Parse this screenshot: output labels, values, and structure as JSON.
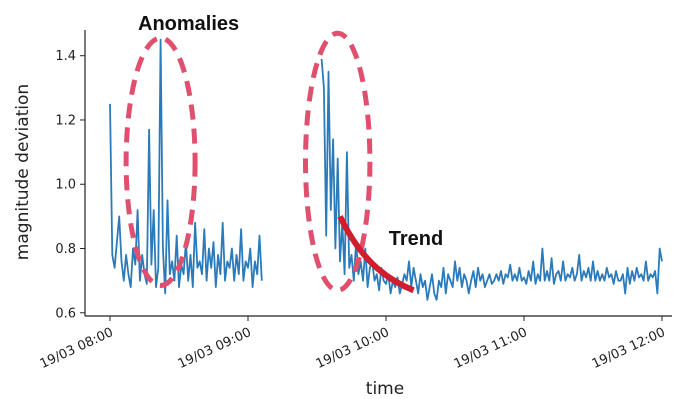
{
  "chart_data": {
    "type": "line",
    "xlabel": "time",
    "ylabel": "magnitude deviation",
    "title": "",
    "ylim": [
      0.59,
      1.48
    ],
    "xlim": [
      "2019-03-19T08:00",
      "2019-03-19T12:02"
    ],
    "grid": false,
    "y_ticks": [
      0.6,
      0.8,
      1.0,
      1.2,
      1.4
    ],
    "y_tick_labels": [
      "0.6",
      "0.8",
      "1.0",
      "1.2",
      "1.4"
    ],
    "x_ticks": [
      "2019-03-19T08:00",
      "2019-03-19T09:00",
      "2019-03-19T10:00",
      "2019-03-19T11:00",
      "2019-03-19T12:00"
    ],
    "x_tick_labels": [
      "19/03 08:00",
      "19/03 09:00",
      "19/03 10:00",
      "19/03 11:00",
      "19/03 12:00"
    ],
    "series_color": "#2b7bba",
    "series": [
      {
        "segments": [
          {
            "x": [
              "2019-03-19T08:00",
              "2019-03-19T08:01",
              "2019-03-19T08:02",
              "2019-03-19T08:03",
              "2019-03-19T08:04",
              "2019-03-19T08:05",
              "2019-03-19T08:06",
              "2019-03-19T08:07",
              "2019-03-19T08:08",
              "2019-03-19T08:09",
              "2019-03-19T08:10",
              "2019-03-19T08:11",
              "2019-03-19T08:12",
              "2019-03-19T08:13",
              "2019-03-19T08:14",
              "2019-03-19T08:15",
              "2019-03-19T08:16",
              "2019-03-19T08:17",
              "2019-03-19T08:18",
              "2019-03-19T08:19",
              "2019-03-19T08:20",
              "2019-03-19T08:21",
              "2019-03-19T08:22",
              "2019-03-19T08:23",
              "2019-03-19T08:24",
              "2019-03-19T08:25",
              "2019-03-19T08:26",
              "2019-03-19T08:27",
              "2019-03-19T08:28",
              "2019-03-19T08:29",
              "2019-03-19T08:30",
              "2019-03-19T08:31",
              "2019-03-19T08:32",
              "2019-03-19T08:33",
              "2019-03-19T08:34",
              "2019-03-19T08:35",
              "2019-03-19T08:36",
              "2019-03-19T08:37",
              "2019-03-19T08:38",
              "2019-03-19T08:39",
              "2019-03-19T08:40",
              "2019-03-19T08:41",
              "2019-03-19T08:42",
              "2019-03-19T08:43",
              "2019-03-19T08:44",
              "2019-03-19T08:45",
              "2019-03-19T08:46",
              "2019-03-19T08:47",
              "2019-03-19T08:48",
              "2019-03-19T08:49",
              "2019-03-19T08:50",
              "2019-03-19T08:51",
              "2019-03-19T08:52",
              "2019-03-19T08:53",
              "2019-03-19T08:54",
              "2019-03-19T08:55",
              "2019-03-19T08:56",
              "2019-03-19T08:57",
              "2019-03-19T08:58",
              "2019-03-19T08:59",
              "2019-03-19T09:00",
              "2019-03-19T09:01",
              "2019-03-19T09:02",
              "2019-03-19T09:03",
              "2019-03-19T09:04",
              "2019-03-19T09:05",
              "2019-03-19T09:06"
            ],
            "y": [
              1.25,
              0.78,
              0.74,
              0.82,
              0.9,
              0.76,
              0.7,
              0.78,
              0.72,
              0.68,
              0.8,
              0.75,
              0.92,
              0.7,
              0.78,
              0.72,
              0.69,
              1.17,
              0.75,
              0.92,
              0.68,
              0.74,
              1.45,
              0.8,
              0.66,
              0.95,
              0.72,
              0.76,
              0.7,
              0.84,
              0.68,
              0.75,
              0.72,
              0.82,
              0.7,
              0.78,
              0.68,
              0.88,
              0.74,
              0.76,
              0.72,
              0.86,
              0.7,
              0.8,
              0.74,
              0.82,
              0.68,
              0.78,
              0.72,
              0.88,
              0.7,
              0.76,
              0.74,
              0.8,
              0.7,
              0.78,
              0.72,
              0.86,
              0.7,
              0.76,
              0.74,
              0.8,
              0.68,
              0.76,
              0.72,
              0.84,
              0.7
            ]
          },
          {
            "x": [
              "2019-03-19T09:32",
              "2019-03-19T09:33",
              "2019-03-19T09:34",
              "2019-03-19T09:35",
              "2019-03-19T09:36",
              "2019-03-19T09:37",
              "2019-03-19T09:38",
              "2019-03-19T09:39",
              "2019-03-19T09:40",
              "2019-03-19T09:41",
              "2019-03-19T09:42",
              "2019-03-19T09:43",
              "2019-03-19T09:44",
              "2019-03-19T09:45",
              "2019-03-19T09:46",
              "2019-03-19T09:47",
              "2019-03-19T09:48",
              "2019-03-19T09:49",
              "2019-03-19T09:50",
              "2019-03-19T09:51",
              "2019-03-19T09:52",
              "2019-03-19T09:53",
              "2019-03-19T09:54",
              "2019-03-19T09:55",
              "2019-03-19T09:56",
              "2019-03-19T09:57",
              "2019-03-19T09:58",
              "2019-03-19T09:59",
              "2019-03-19T10:00",
              "2019-03-19T10:01",
              "2019-03-19T10:02",
              "2019-03-19T10:03",
              "2019-03-19T10:04",
              "2019-03-19T10:05",
              "2019-03-19T10:06",
              "2019-03-19T10:07",
              "2019-03-19T10:08",
              "2019-03-19T10:09",
              "2019-03-19T10:10",
              "2019-03-19T10:11",
              "2019-03-19T10:12",
              "2019-03-19T10:13",
              "2019-03-19T10:14",
              "2019-03-19T10:15",
              "2019-03-19T10:16",
              "2019-03-19T10:17",
              "2019-03-19T10:18",
              "2019-03-19T10:19",
              "2019-03-19T10:20",
              "2019-03-19T10:21",
              "2019-03-19T10:22",
              "2019-03-19T10:23",
              "2019-03-19T10:24",
              "2019-03-19T10:25",
              "2019-03-19T10:26",
              "2019-03-19T10:27",
              "2019-03-19T10:28",
              "2019-03-19T10:29",
              "2019-03-19T10:30",
              "2019-03-19T10:31",
              "2019-03-19T10:32",
              "2019-03-19T10:33",
              "2019-03-19T10:34",
              "2019-03-19T10:35",
              "2019-03-19T10:36",
              "2019-03-19T10:37",
              "2019-03-19T10:38",
              "2019-03-19T10:39",
              "2019-03-19T10:40",
              "2019-03-19T10:41",
              "2019-03-19T10:42",
              "2019-03-19T10:43",
              "2019-03-19T10:44",
              "2019-03-19T10:45",
              "2019-03-19T10:46",
              "2019-03-19T10:47",
              "2019-03-19T10:48",
              "2019-03-19T10:49",
              "2019-03-19T10:50",
              "2019-03-19T10:51",
              "2019-03-19T10:52",
              "2019-03-19T10:53",
              "2019-03-19T10:54",
              "2019-03-19T10:55",
              "2019-03-19T10:56",
              "2019-03-19T10:57",
              "2019-03-19T10:58",
              "2019-03-19T10:59",
              "2019-03-19T11:00",
              "2019-03-19T11:01",
              "2019-03-19T11:02",
              "2019-03-19T11:03",
              "2019-03-19T11:04",
              "2019-03-19T11:05",
              "2019-03-19T11:06",
              "2019-03-19T11:07",
              "2019-03-19T11:08",
              "2019-03-19T11:09",
              "2019-03-19T11:10",
              "2019-03-19T11:11",
              "2019-03-19T11:12",
              "2019-03-19T11:13",
              "2019-03-19T11:14",
              "2019-03-19T11:15",
              "2019-03-19T11:16",
              "2019-03-19T11:17",
              "2019-03-19T11:18",
              "2019-03-19T11:19",
              "2019-03-19T11:20",
              "2019-03-19T11:21",
              "2019-03-19T11:22",
              "2019-03-19T11:23",
              "2019-03-19T11:24",
              "2019-03-19T11:25",
              "2019-03-19T11:26",
              "2019-03-19T11:27",
              "2019-03-19T11:28",
              "2019-03-19T11:29",
              "2019-03-19T11:30",
              "2019-03-19T11:31",
              "2019-03-19T11:32",
              "2019-03-19T11:33",
              "2019-03-19T11:34",
              "2019-03-19T11:35",
              "2019-03-19T11:36",
              "2019-03-19T11:37",
              "2019-03-19T11:38",
              "2019-03-19T11:39",
              "2019-03-19T11:40",
              "2019-03-19T11:41",
              "2019-03-19T11:42",
              "2019-03-19T11:43",
              "2019-03-19T11:44",
              "2019-03-19T11:45",
              "2019-03-19T11:46",
              "2019-03-19T11:47",
              "2019-03-19T11:48",
              "2019-03-19T11:49",
              "2019-03-19T11:50",
              "2019-03-19T11:51",
              "2019-03-19T11:52",
              "2019-03-19T11:53",
              "2019-03-19T11:54",
              "2019-03-19T11:55",
              "2019-03-19T11:56",
              "2019-03-19T11:57",
              "2019-03-19T11:58",
              "2019-03-19T11:59",
              "2019-03-19T12:00"
            ],
            "y": [
              1.39,
              1.3,
              0.84,
              1.35,
              0.92,
              1.14,
              0.8,
              1.08,
              0.76,
              0.88,
              0.72,
              1.1,
              0.74,
              0.78,
              0.7,
              0.82,
              0.72,
              0.76,
              0.7,
              0.8,
              0.68,
              0.74,
              0.76,
              0.7,
              0.72,
              0.67,
              0.74,
              0.7,
              0.69,
              0.72,
              0.66,
              0.7,
              0.68,
              0.71,
              0.66,
              0.69,
              0.72,
              0.7,
              0.76,
              0.68,
              0.74,
              0.7,
              0.66,
              0.72,
              0.68,
              0.7,
              0.64,
              0.68,
              0.72,
              0.66,
              0.64,
              0.7,
              0.68,
              0.74,
              0.66,
              0.72,
              0.7,
              0.68,
              0.76,
              0.7,
              0.74,
              0.68,
              0.72,
              0.7,
              0.66,
              0.7,
              0.73,
              0.68,
              0.74,
              0.7,
              0.72,
              0.68,
              0.7,
              0.72,
              0.69,
              0.7,
              0.72,
              0.7,
              0.73,
              0.69,
              0.72,
              0.71,
              0.75,
              0.7,
              0.72,
              0.7,
              0.74,
              0.7,
              0.71,
              0.69,
              0.73,
              0.7,
              0.76,
              0.69,
              0.72,
              0.7,
              0.8,
              0.7,
              0.73,
              0.7,
              0.77,
              0.69,
              0.72,
              0.73,
              0.7,
              0.76,
              0.7,
              0.72,
              0.71,
              0.74,
              0.7,
              0.72,
              0.78,
              0.7,
              0.73,
              0.71,
              0.74,
              0.7,
              0.76,
              0.7,
              0.73,
              0.7,
              0.72,
              0.7,
              0.74,
              0.71,
              0.72,
              0.69,
              0.73,
              0.7,
              0.7,
              0.72,
              0.66,
              0.74,
              0.69,
              0.73,
              0.7,
              0.74,
              0.71,
              0.72,
              0.7,
              0.76,
              0.7,
              0.72,
              0.71,
              0.73,
              0.66,
              0.8,
              0.76
            ]
          }
        ]
      }
    ],
    "annotations": [
      {
        "text": "Anomalies",
        "shape": "dashed-ellipse",
        "color": "#e0506e",
        "center": [
          "2019-03-19T08:22",
          1.07
        ],
        "radius_minutes": 15,
        "radius_value": 0.385
      },
      {
        "text": "",
        "shape": "dashed-ellipse",
        "color": "#e0506e",
        "center": [
          "2019-03-19T09:39",
          1.07
        ],
        "radius_minutes": 14,
        "radius_value": 0.4
      },
      {
        "text": "Trend",
        "shape": "curved-line",
        "color": "#d01e2e",
        "path_x": [
          "2019-03-19T09:40",
          "2019-03-19T09:48",
          "2019-03-19T09:58",
          "2019-03-19T10:12"
        ],
        "path_y": [
          0.9,
          0.78,
          0.71,
          0.67
        ]
      }
    ]
  }
}
